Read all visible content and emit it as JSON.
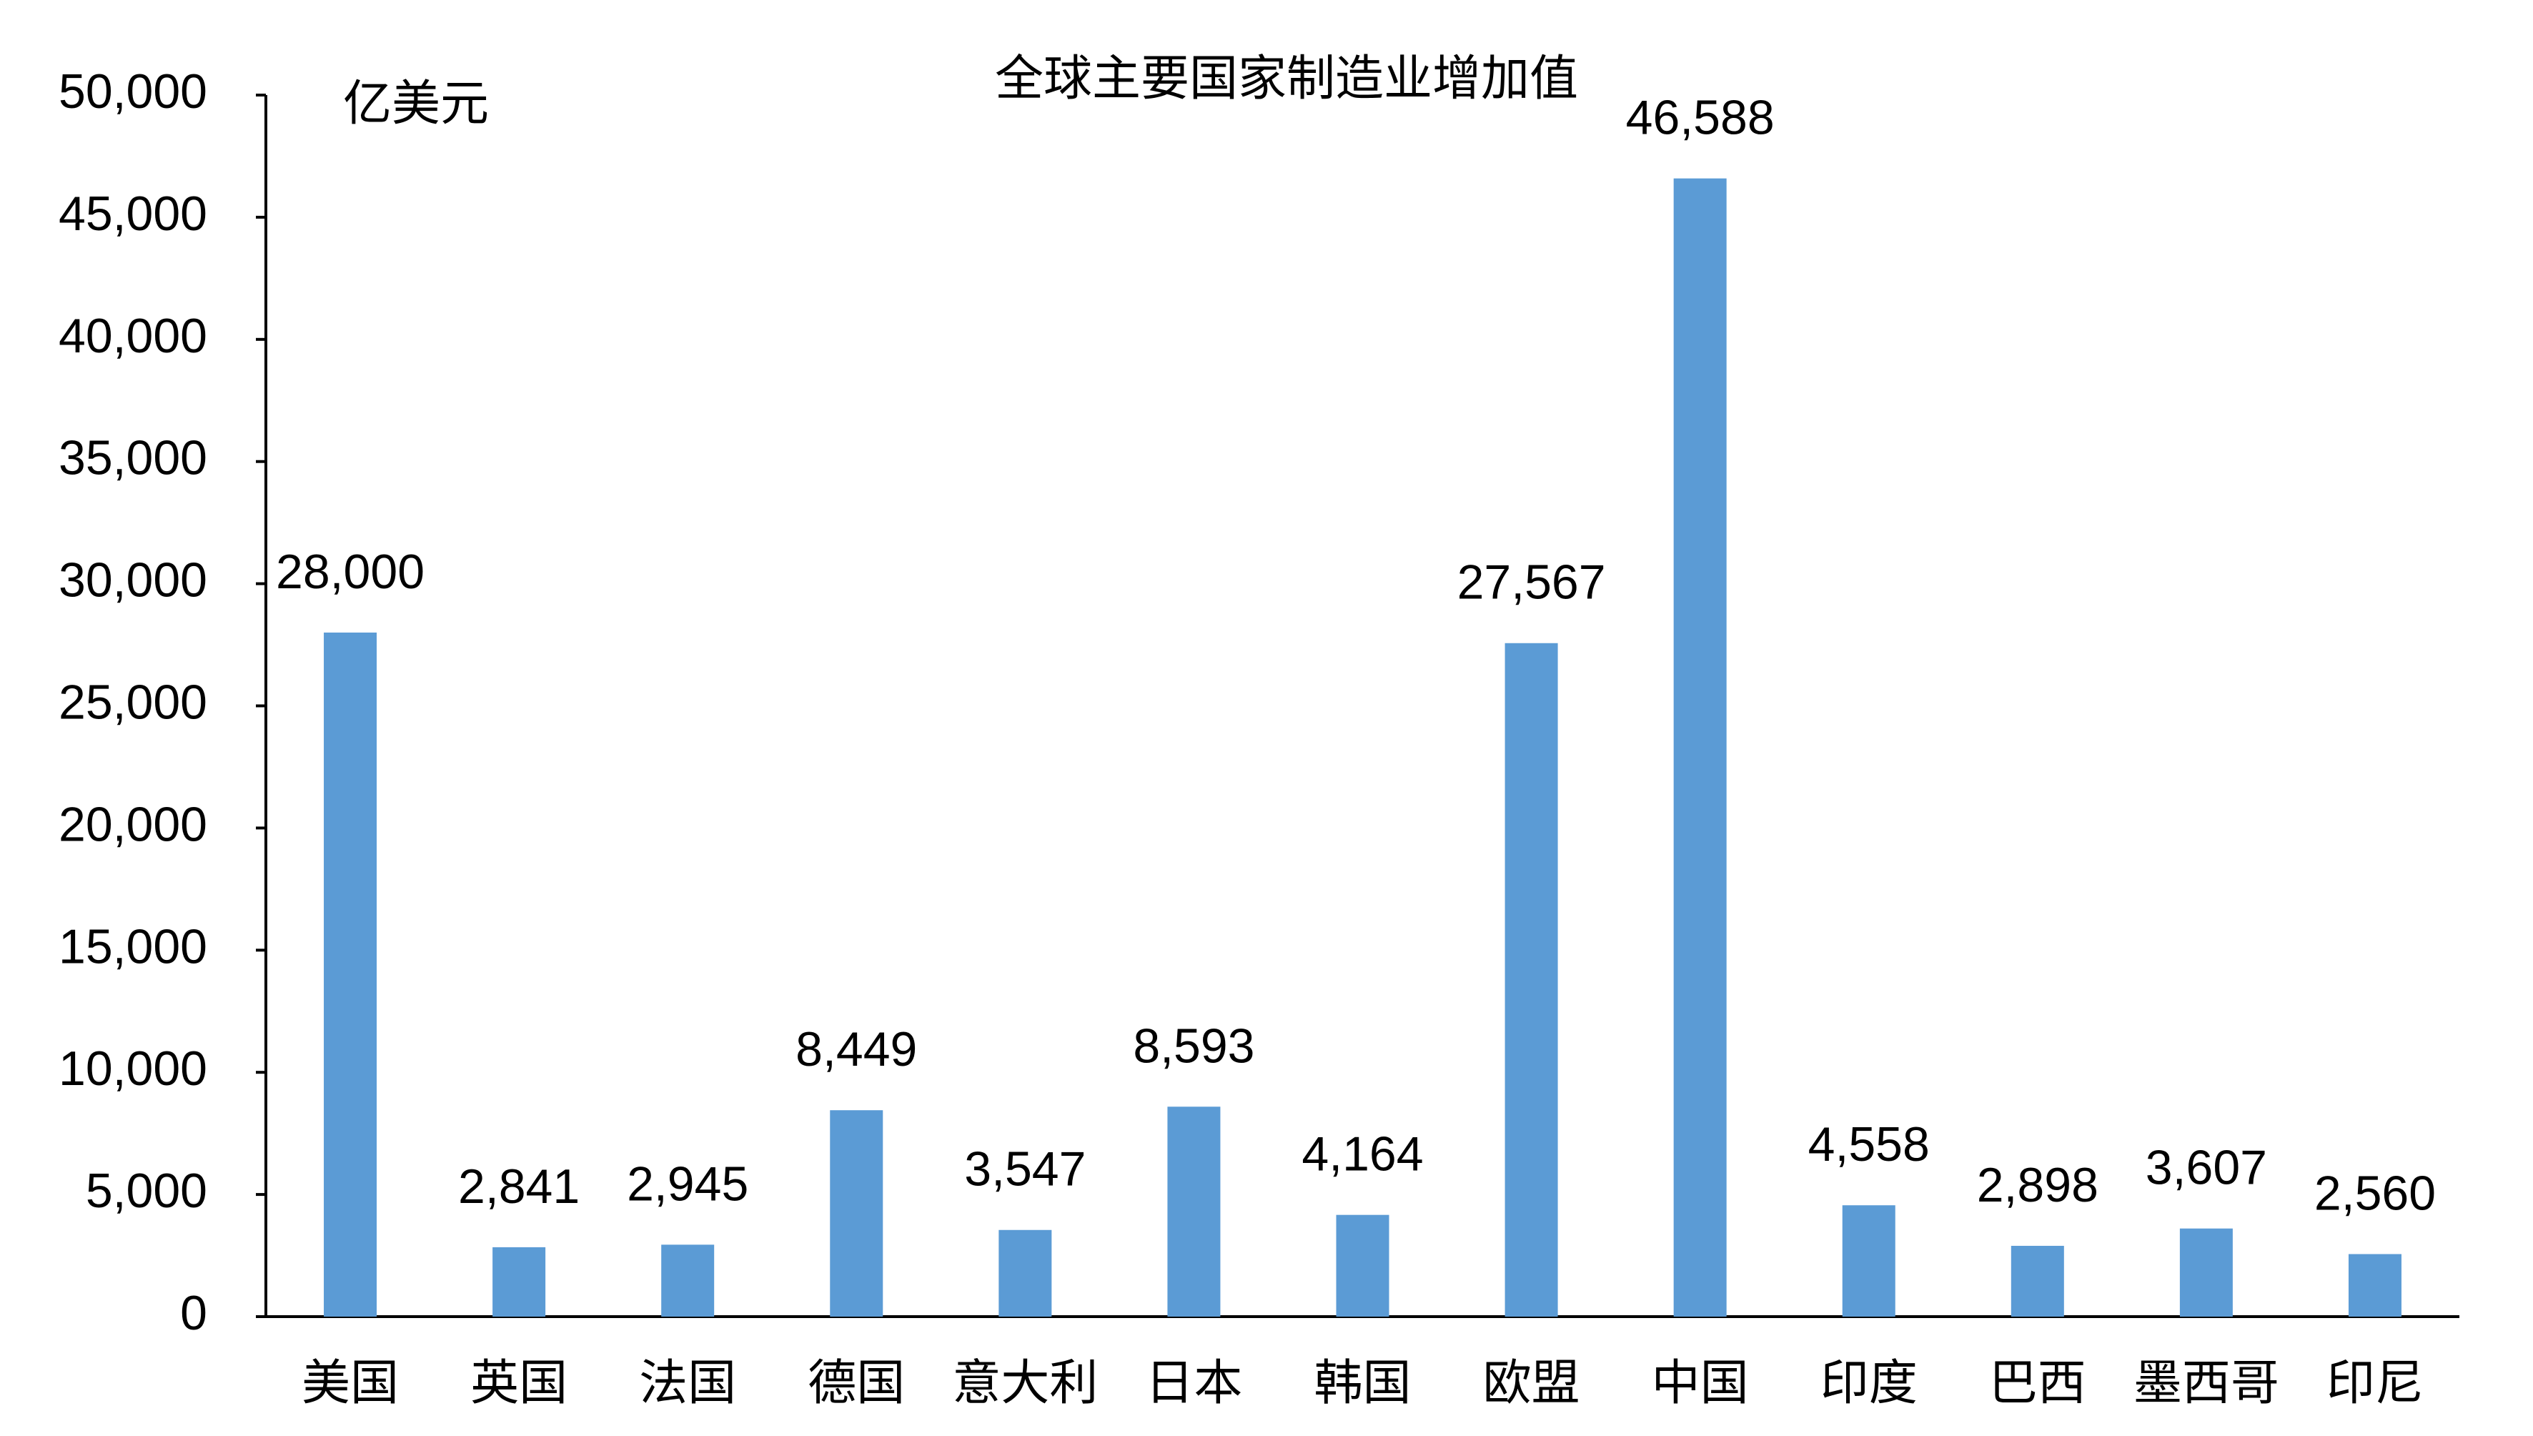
{
  "chart_data": {
    "type": "bar",
    "title": "全球主要国家制造业增加值",
    "y_unit_label": "亿美元",
    "categories": [
      "美国",
      "英国",
      "法国",
      "德国",
      "意大利",
      "日本",
      "韩国",
      "欧盟",
      "中国",
      "印度",
      "巴西",
      "墨西哥",
      "印尼"
    ],
    "values": [
      28000,
      2841,
      2945,
      8449,
      3547,
      8593,
      4164,
      27567,
      46588,
      4558,
      2898,
      3607,
      2560
    ],
    "value_labels": [
      "28,000",
      "2,841",
      "2,945",
      "8,449",
      "3,547",
      "8,593",
      "4,164",
      "27,567",
      "46,588",
      "4,558",
      "2,898",
      "3,607",
      "2,560"
    ],
    "color": "#5b9bd5",
    "ylim": [
      0,
      50000
    ],
    "yticks": [
      0,
      {
        "value": 5000,
        "label": "5,000"
      },
      {
        "value": 10000,
        "label": "10,000"
      },
      {
        "value": 15000,
        "label": "15,000"
      },
      {
        "value": 20000,
        "label": "20,000"
      },
      {
        "value": 25000,
        "label": "25,000"
      },
      {
        "value": 30000,
        "label": "30,000"
      },
      {
        "value": 35000,
        "label": "35,000"
      },
      {
        "value": 40000,
        "label": "40,000"
      },
      {
        "value": 45000,
        "label": "45,000"
      },
      {
        "value": 50000,
        "label": "50,000"
      }
    ],
    "grid": false
  }
}
